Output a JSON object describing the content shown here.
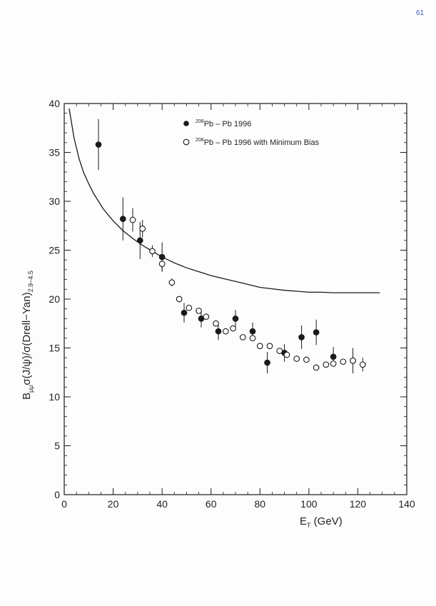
{
  "page_mark": "61",
  "chart_data": {
    "type": "scatter",
    "title": "",
    "xlabel": "E_T (GeV)",
    "xlabel_parts": {
      "E": "E",
      "sub": "T",
      "rest": " (GeV)"
    },
    "ylabel": "B_μμ σ(J/ψ)/σ(Drell–Yan)_{2.9–4.5}",
    "ylabel_parts": {
      "B": "B",
      "B_sub": "μμ",
      "middle": "σ(J/ψ)/σ(Drell−Yan)",
      "end_sub": "2.9−4.5"
    },
    "xlim": [
      0,
      140
    ],
    "ylim": [
      0,
      40
    ],
    "xticks": [
      0,
      20,
      40,
      60,
      80,
      100,
      120,
      140
    ],
    "yticks": [
      0,
      5,
      10,
      15,
      20,
      25,
      30,
      35,
      40
    ],
    "grid": false,
    "legend_position": "top-center",
    "legend": [
      {
        "sup": "208",
        "text": "Pb – Pb 1996",
        "marker": "filled-circle"
      },
      {
        "sup": "208",
        "text": "Pb – Pb 1996 with Minimum Bias",
        "marker": "open-circle"
      }
    ],
    "series": [
      {
        "name": "208Pb – Pb 1996",
        "marker": "filled",
        "points": [
          {
            "x": 14,
            "y": 35.8,
            "err": 2.6
          },
          {
            "x": 24,
            "y": 28.2,
            "err": 2.2
          },
          {
            "x": 31,
            "y": 26.0,
            "err": 1.9
          },
          {
            "x": 40,
            "y": 24.3,
            "err": 1.5
          },
          {
            "x": 49,
            "y": 18.6,
            "err": 1.0
          },
          {
            "x": 56,
            "y": 18.0,
            "err": 0.9
          },
          {
            "x": 63,
            "y": 16.7,
            "err": 0.9
          },
          {
            "x": 70,
            "y": 18.0,
            "err": 0.9
          },
          {
            "x": 77,
            "y": 16.7,
            "err": 0.9
          },
          {
            "x": 83,
            "y": 13.5,
            "err": 1.1
          },
          {
            "x": 90,
            "y": 14.5,
            "err": 0.9
          },
          {
            "x": 97,
            "y": 16.1,
            "err": 1.2
          },
          {
            "x": 103,
            "y": 16.6,
            "err": 1.3
          },
          {
            "x": 110,
            "y": 14.1,
            "err": 1.0
          },
          {
            "x": 118,
            "y": 13.7,
            "err": 1.3
          }
        ]
      },
      {
        "name": "208Pb – Pb 1996 with Minimum Bias",
        "marker": "open",
        "points": [
          {
            "x": 28,
            "y": 28.1,
            "err": 1.2
          },
          {
            "x": 32,
            "y": 27.2,
            "err": 0.9
          },
          {
            "x": 36,
            "y": 24.9,
            "err": 0.6
          },
          {
            "x": 40,
            "y": 23.6,
            "err": 0.8
          },
          {
            "x": 44,
            "y": 21.7,
            "err": 0.4
          },
          {
            "x": 47,
            "y": 20.0,
            "err": 0.3
          },
          {
            "x": 51,
            "y": 19.1,
            "err": 0.3
          },
          {
            "x": 55,
            "y": 18.8,
            "err": 0.3
          },
          {
            "x": 58,
            "y": 18.2,
            "err": 0.3
          },
          {
            "x": 62,
            "y": 17.5,
            "err": 0.3
          },
          {
            "x": 66,
            "y": 16.7,
            "err": 0.3
          },
          {
            "x": 69,
            "y": 17.0,
            "err": 0.3
          },
          {
            "x": 73,
            "y": 16.1,
            "err": 0.3
          },
          {
            "x": 77,
            "y": 16.0,
            "err": 0.3
          },
          {
            "x": 80,
            "y": 15.2,
            "err": 0.3
          },
          {
            "x": 84,
            "y": 15.2,
            "err": 0.3
          },
          {
            "x": 88,
            "y": 14.7,
            "err": 0.3
          },
          {
            "x": 91,
            "y": 14.3,
            "err": 0.3
          },
          {
            "x": 95,
            "y": 13.9,
            "err": 0.3
          },
          {
            "x": 99,
            "y": 13.8,
            "err": 0.3
          },
          {
            "x": 103,
            "y": 13.0,
            "err": 0.3
          },
          {
            "x": 107,
            "y": 13.3,
            "err": 0.3
          },
          {
            "x": 110,
            "y": 13.4,
            "err": 0.3
          },
          {
            "x": 114,
            "y": 13.6,
            "err": 0.3
          },
          {
            "x": 118,
            "y": 13.7,
            "err": 0.4
          },
          {
            "x": 122,
            "y": 13.3,
            "err": 0.7
          }
        ]
      }
    ],
    "curve": {
      "style": "solid-line",
      "points": [
        [
          2,
          39.5
        ],
        [
          4,
          36.5
        ],
        [
          6,
          34.4
        ],
        [
          8,
          32.9
        ],
        [
          10,
          31.8
        ],
        [
          12,
          30.8
        ],
        [
          14,
          30.0
        ],
        [
          16,
          29.2
        ],
        [
          18,
          28.6
        ],
        [
          20,
          28.0
        ],
        [
          24,
          27.0
        ],
        [
          28,
          26.2
        ],
        [
          32,
          25.5
        ],
        [
          36,
          24.9
        ],
        [
          40,
          24.3
        ],
        [
          45,
          23.7
        ],
        [
          50,
          23.2
        ],
        [
          55,
          22.8
        ],
        [
          60,
          22.4
        ],
        [
          65,
          22.1
        ],
        [
          70,
          21.8
        ],
        [
          75,
          21.5
        ],
        [
          80,
          21.2
        ],
        [
          85,
          21.05
        ],
        [
          90,
          20.9
        ],
        [
          95,
          20.8
        ],
        [
          100,
          20.7
        ],
        [
          105,
          20.7
        ],
        [
          110,
          20.65
        ],
        [
          120,
          20.65
        ],
        [
          129,
          20.65
        ]
      ]
    }
  }
}
